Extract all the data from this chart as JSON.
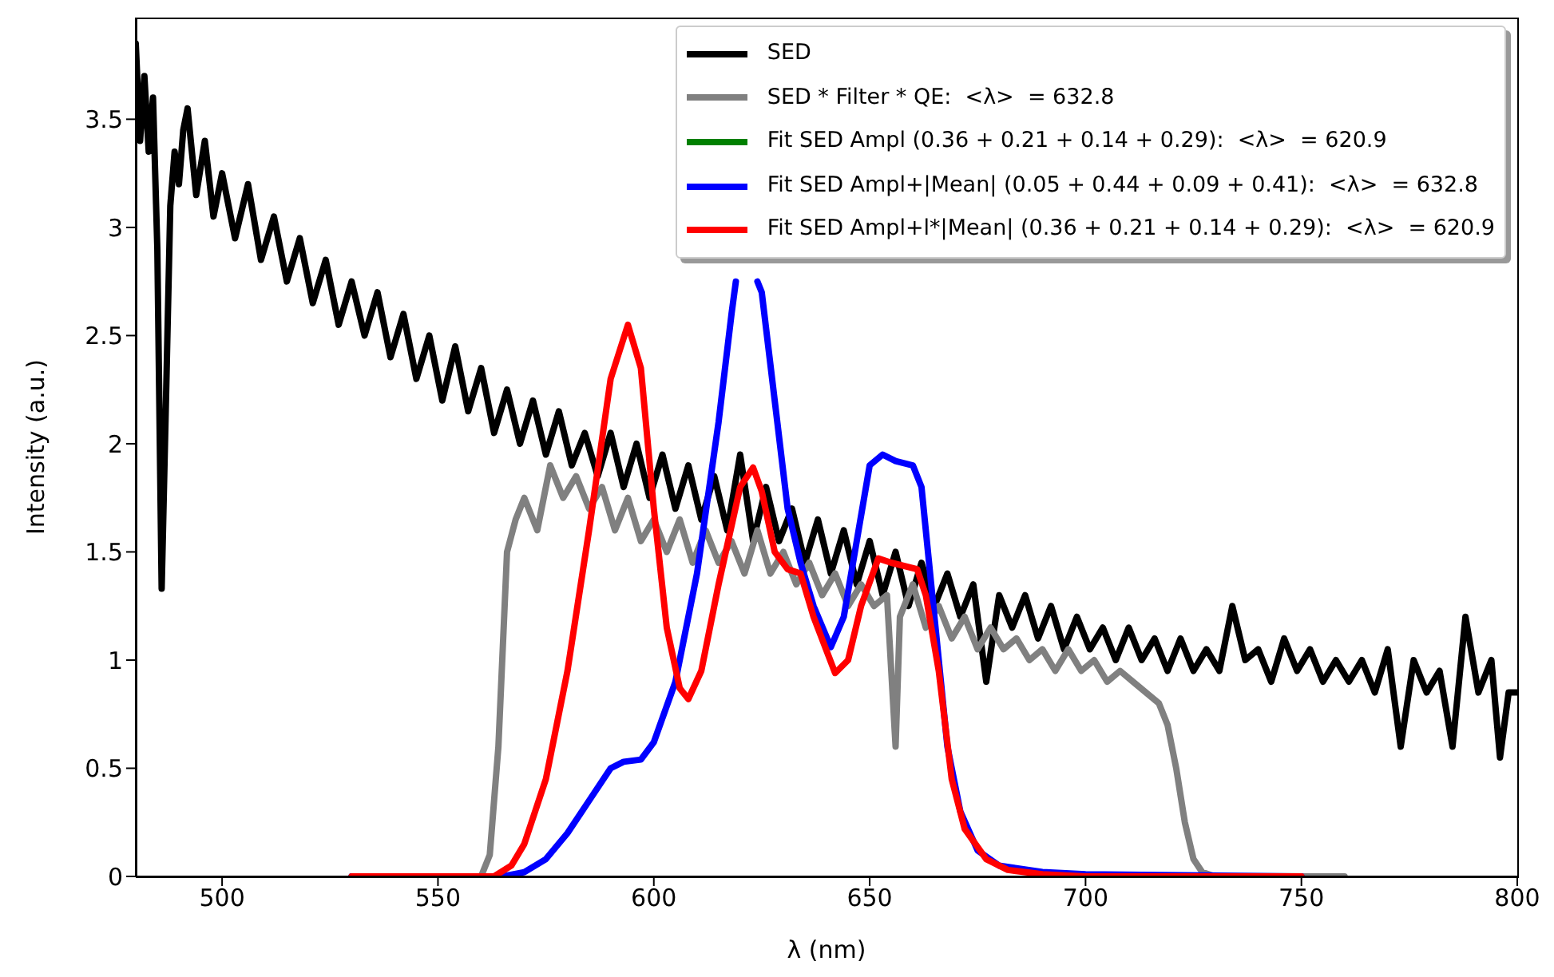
{
  "chart_data": {
    "type": "line",
    "xlabel": "λ (nm)",
    "ylabel": "Intensity (a.u.)",
    "xlim": [
      480,
      800
    ],
    "xticks": [
      500,
      550,
      600,
      650,
      700,
      750,
      800
    ],
    "ylim": [
      0,
      3.97
    ],
    "yticks": [
      0,
      0.5,
      1,
      1.5,
      2,
      2.5,
      3,
      3.5
    ],
    "legend": "top right",
    "marker": "none",
    "line_style": "solid",
    "series": [
      {
        "name": "SED",
        "color": "#000000",
        "x": [
          480,
          481,
          482,
          483,
          484,
          485,
          486,
          487,
          488,
          489,
          490,
          491,
          492,
          494,
          496,
          498,
          500,
          503,
          506,
          509,
          512,
          515,
          518,
          521,
          524,
          527,
          530,
          533,
          536,
          539,
          542,
          545,
          548,
          551,
          554,
          557,
          560,
          563,
          566,
          569,
          572,
          575,
          578,
          581,
          584,
          587,
          590,
          593,
          596,
          599,
          602,
          605,
          608,
          611,
          614,
          617,
          620,
          623,
          626,
          629,
          632,
          635,
          638,
          641,
          644,
          647,
          650,
          653,
          656,
          659,
          662,
          665,
          668,
          671,
          674,
          677,
          680,
          683,
          686,
          689,
          692,
          695,
          698,
          701,
          704,
          707,
          710,
          713,
          716,
          719,
          722,
          725,
          728,
          731,
          734,
          737,
          740,
          743,
          746,
          749,
          752,
          755,
          758,
          761,
          764,
          767,
          770,
          773,
          776,
          779,
          782,
          785,
          788,
          791,
          794,
          796,
          798,
          800
        ],
        "values": [
          3.85,
          3.4,
          3.7,
          3.35,
          3.6,
          2.9,
          1.33,
          2.2,
          3.1,
          3.35,
          3.2,
          3.45,
          3.55,
          3.15,
          3.4,
          3.05,
          3.25,
          2.95,
          3.2,
          2.85,
          3.05,
          2.75,
          2.95,
          2.65,
          2.85,
          2.55,
          2.75,
          2.5,
          2.7,
          2.4,
          2.6,
          2.3,
          2.5,
          2.2,
          2.45,
          2.15,
          2.35,
          2.05,
          2.25,
          2.0,
          2.2,
          1.95,
          2.15,
          1.9,
          2.05,
          1.85,
          2.05,
          1.8,
          2.0,
          1.75,
          1.95,
          1.7,
          1.9,
          1.65,
          1.85,
          1.6,
          1.95,
          1.55,
          1.8,
          1.55,
          1.7,
          1.45,
          1.65,
          1.4,
          1.6,
          1.35,
          1.55,
          1.3,
          1.5,
          1.25,
          1.45,
          1.25,
          1.4,
          1.2,
          1.35,
          0.9,
          1.3,
          1.15,
          1.3,
          1.1,
          1.25,
          1.05,
          1.2,
          1.05,
          1.15,
          1.0,
          1.15,
          1.0,
          1.1,
          0.95,
          1.1,
          0.95,
          1.05,
          0.95,
          1.25,
          1.0,
          1.05,
          0.9,
          1.1,
          0.95,
          1.05,
          0.9,
          1.0,
          0.9,
          1.0,
          0.85,
          1.05,
          0.6,
          1.0,
          0.85,
          0.95,
          0.6,
          1.2,
          0.85,
          1.0,
          0.55,
          0.85,
          0.85
        ]
      },
      {
        "name": "SED * Filter * QE:  <λ>  = 632.8",
        "color": "#808080",
        "x": [
          530,
          560,
          562,
          564,
          566,
          568,
          570,
          573,
          576,
          579,
          582,
          585,
          588,
          591,
          594,
          597,
          600,
          603,
          606,
          609,
          612,
          615,
          618,
          621,
          624,
          627,
          630,
          633,
          636,
          639,
          642,
          645,
          648,
          651,
          654,
          656,
          657,
          660,
          663,
          666,
          669,
          672,
          675,
          678,
          681,
          684,
          687,
          690,
          693,
          696,
          699,
          702,
          705,
          708,
          711,
          714,
          717,
          719,
          721,
          723,
          725,
          727,
          730,
          760
        ],
        "values": [
          0,
          0,
          0.1,
          0.6,
          1.5,
          1.65,
          1.75,
          1.6,
          1.9,
          1.75,
          1.85,
          1.7,
          1.8,
          1.6,
          1.75,
          1.55,
          1.65,
          1.5,
          1.65,
          1.45,
          1.6,
          1.45,
          1.55,
          1.4,
          1.6,
          1.4,
          1.5,
          1.35,
          1.45,
          1.3,
          1.4,
          1.25,
          1.35,
          1.25,
          1.3,
          0.6,
          1.2,
          1.35,
          1.15,
          1.25,
          1.1,
          1.2,
          1.05,
          1.15,
          1.05,
          1.1,
          1.0,
          1.05,
          0.95,
          1.05,
          0.95,
          1.0,
          0.9,
          0.95,
          0.9,
          0.85,
          0.8,
          0.7,
          0.5,
          0.25,
          0.08,
          0.02,
          0,
          0
        ]
      },
      {
        "name": "Fit SED Ampl (0.36 + 0.21 + 0.14 + 0.29):  <λ>  = 620.9",
        "color": "#008000"
      },
      {
        "name": "Fit SED Ampl+|Mean| (0.05 + 0.44 + 0.09 + 0.41):  <λ>  = 632.8",
        "color": "#0000ff",
        "x": [
          530,
          565,
          570,
          575,
          580,
          585,
          590,
          593,
          597,
          600,
          605,
          610,
          615,
          618,
          619,
          620,
          623,
          624,
          625,
          628,
          631,
          634,
          637,
          641,
          644,
          647,
          650,
          653,
          656,
          660,
          662,
          665,
          668,
          671,
          675,
          680,
          690,
          700,
          750
        ],
        "values": [
          0,
          0,
          0.02,
          0.08,
          0.2,
          0.35,
          0.5,
          0.53,
          0.54,
          0.62,
          0.9,
          1.4,
          2.1,
          2.6,
          2.75,
          null,
          null,
          2.75,
          2.7,
          2.2,
          1.7,
          1.45,
          1.25,
          1.06,
          1.2,
          1.55,
          1.9,
          1.95,
          1.92,
          1.9,
          1.8,
          1.2,
          0.6,
          0.3,
          0.12,
          0.05,
          0.02,
          0.01,
          0
        ]
      },
      {
        "name": "Fit SED Ampl+l*|Mean| (0.36 + 0.21 + 0.14 + 0.29):  <λ>  = 620.9",
        "color": "#ff0000",
        "x": [
          530,
          563,
          567,
          570,
          575,
          580,
          585,
          590,
          594,
          597,
          600,
          603,
          606,
          608,
          611,
          615,
          620,
          623,
          625,
          628,
          631,
          634,
          637,
          642,
          645,
          648,
          652,
          655,
          661,
          663,
          666,
          669,
          672,
          677,
          682,
          690,
          700,
          750
        ],
        "values": [
          0,
          0,
          0.05,
          0.15,
          0.45,
          0.95,
          1.6,
          2.3,
          2.55,
          2.35,
          1.7,
          1.15,
          0.87,
          0.82,
          0.95,
          1.35,
          1.8,
          1.89,
          1.78,
          1.5,
          1.42,
          1.4,
          1.2,
          0.94,
          1.0,
          1.25,
          1.47,
          1.45,
          1.42,
          1.3,
          0.95,
          0.45,
          0.22,
          0.08,
          0.03,
          0.01,
          0,
          0
        ]
      }
    ]
  }
}
